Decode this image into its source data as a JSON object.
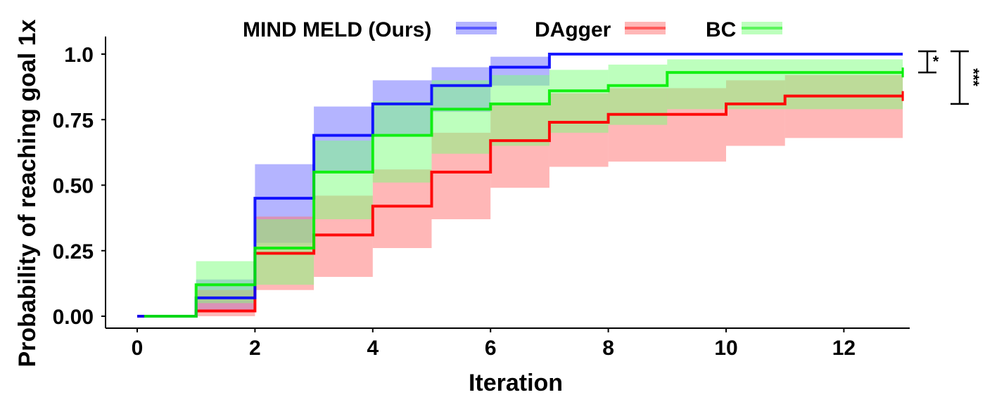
{
  "chart_data": {
    "type": "line",
    "step": true,
    "xlabel": "Iteration",
    "ylabel": "Probability of reaching goal 1x",
    "xlim": [
      0,
      13
    ],
    "ylim": [
      -0.05,
      1.05
    ],
    "xticks": [
      0,
      2,
      4,
      6,
      8,
      10,
      12
    ],
    "xtick_labels": [
      "0",
      "2",
      "4",
      "6",
      "8",
      "10",
      "12"
    ],
    "yticks": [
      0,
      0.25,
      0.5,
      0.75,
      1
    ],
    "ytick_labels": [
      "0.00",
      "0.25",
      "0.50",
      "0.75",
      "1.0"
    ],
    "grid": false,
    "legend_position": "top",
    "series": [
      {
        "name": "MIND MELD (Ours)",
        "color": "#0000ff",
        "band_color": "#6a6aff",
        "x": [
          0,
          1,
          2,
          3,
          4,
          5,
          6,
          7,
          13
        ],
        "y": [
          0,
          0.07,
          0.45,
          0.69,
          0.81,
          0.88,
          0.95,
          1.0,
          1.0
        ],
        "lower": [
          0,
          0.02,
          0.28,
          0.55,
          0.69,
          0.78,
          0.88,
          1.0,
          1.0
        ],
        "upper": [
          0,
          0.14,
          0.58,
          0.8,
          0.9,
          0.95,
          0.99,
          1.0,
          1.0
        ]
      },
      {
        "name": "DAgger",
        "color": "#ff0000",
        "band_color": "#ff6f6f",
        "x": [
          0,
          1,
          2,
          3,
          4,
          5,
          6,
          7,
          8,
          10,
          11,
          13
        ],
        "y": [
          0,
          0.02,
          0.24,
          0.31,
          0.42,
          0.55,
          0.67,
          0.74,
          0.77,
          0.81,
          0.84,
          0.84
        ],
        "lower": [
          0,
          0.0,
          0.1,
          0.15,
          0.26,
          0.37,
          0.49,
          0.57,
          0.59,
          0.65,
          0.68,
          0.68
        ],
        "upper": [
          0,
          0.1,
          0.38,
          0.46,
          0.56,
          0.7,
          0.81,
          0.85,
          0.87,
          0.9,
          0.92,
          0.92
        ]
      },
      {
        "name": "BC",
        "color": "#00ee00",
        "band_color": "#7cff7c",
        "x": [
          0,
          1,
          2,
          3,
          4,
          5,
          6,
          7,
          8,
          9,
          13
        ],
        "y": [
          0,
          0.12,
          0.26,
          0.55,
          0.69,
          0.79,
          0.81,
          0.86,
          0.88,
          0.93,
          0.93
        ],
        "lower": [
          0,
          0.05,
          0.12,
          0.37,
          0.51,
          0.62,
          0.65,
          0.7,
          0.73,
          0.79,
          0.79
        ],
        "upper": [
          0,
          0.21,
          0.37,
          0.67,
          0.82,
          0.9,
          0.92,
          0.94,
          0.96,
          0.98,
          0.98
        ]
      }
    ],
    "annotations": [
      {
        "label": "*",
        "between": [
          "MIND MELD (Ours)",
          "BC"
        ],
        "y_top": 1.0,
        "y_bottom": 0.93
      },
      {
        "label": "***",
        "between": [
          "MIND MELD (Ours)",
          "DAgger"
        ],
        "y_top": 1.0,
        "y_bottom": 0.81
      }
    ]
  }
}
